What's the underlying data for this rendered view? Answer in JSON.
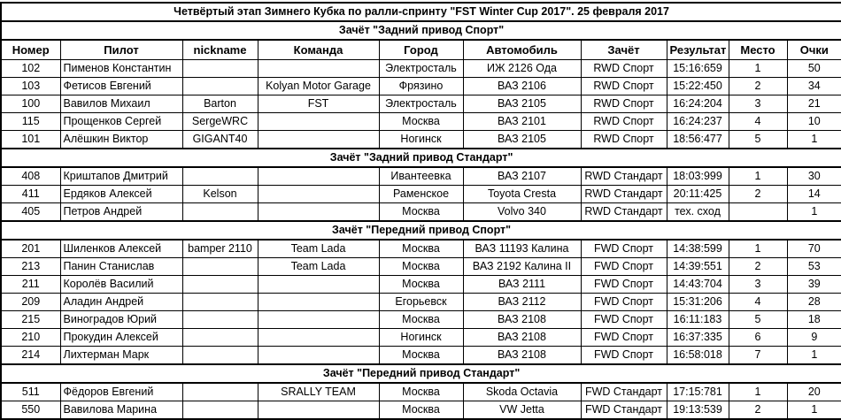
{
  "title": "Четвёртый этап Зимнего Кубка по ралли-спринту \"FST Winter Cup 2017\". 25 февраля 2017",
  "columns": [
    "Номер",
    "Пилот",
    "nickname",
    "Команда",
    "Город",
    "Автомобиль",
    "Зачёт",
    "Результат",
    "Место",
    "Очки"
  ],
  "sections": [
    {
      "title": "Зачёт \"Задний привод Спорт\"",
      "rows": [
        [
          "102",
          "Пименов Константин",
          "",
          "",
          "Электросталь",
          "ИЖ 2126 Ода",
          "RWD Спорт",
          "15:16:659",
          "1",
          "50"
        ],
        [
          "103",
          "Фетисов Евгений",
          "",
          "Kolyan Motor Garage",
          "Фрязино",
          "ВАЗ 2106",
          "RWD Спорт",
          "15:22:450",
          "2",
          "34"
        ],
        [
          "100",
          "Вавилов Михаил",
          "Barton",
          "FST",
          "Электросталь",
          "ВАЗ 2105",
          "RWD Спорт",
          "16:24:204",
          "3",
          "21"
        ],
        [
          "115",
          "Прощенков Сергей",
          "SergeWRC",
          "",
          "Москва",
          "ВАЗ 2101",
          "RWD Спорт",
          "16:24:237",
          "4",
          "10"
        ],
        [
          "101",
          "Алёшкин Виктор",
          "GIGANT40",
          "",
          "Ногинск",
          "ВАЗ 2105",
          "RWD Спорт",
          "18:56:477",
          "5",
          "1"
        ]
      ]
    },
    {
      "title": "Зачёт \"Задний привод Стандарт\"",
      "rows": [
        [
          "408",
          "Криштапов Дмитрий",
          "",
          "",
          "Ивантеевка",
          "ВАЗ 2107",
          "RWD Стандарт",
          "18:03:999",
          "1",
          "30"
        ],
        [
          "411",
          "Ердяков Алексей",
          "Kelson",
          "",
          "Раменское",
          "Toyota Cresta",
          "RWD Стандарт",
          "20:11:425",
          "2",
          "14"
        ],
        [
          "405",
          "Петров Андрей",
          "",
          "",
          "Москва",
          "Volvo 340",
          "RWD Стандарт",
          "тех. сход",
          "",
          "1"
        ]
      ]
    },
    {
      "title": "Зачёт \"Передний привод Спорт\"",
      "rows": [
        [
          "201",
          "Шиленков Алексей",
          "bamper 2110",
          "Team Lada",
          "Москва",
          "ВАЗ 11193 Калина",
          "FWD Спорт",
          "14:38:599",
          "1",
          "70"
        ],
        [
          "213",
          "Панин Станислав",
          "",
          "Team Lada",
          "Москва",
          "ВАЗ 2192 Калина II",
          "FWD Спорт",
          "14:39:551",
          "2",
          "53"
        ],
        [
          "211",
          "Королёв Василий",
          "",
          "",
          "Москва",
          "ВАЗ 2111",
          "FWD Спорт",
          "14:43:704",
          "3",
          "39"
        ],
        [
          "209",
          "Аладин Андрей",
          "",
          "",
          "Егорьевск",
          "ВАЗ 2112",
          "FWD Спорт",
          "15:31:206",
          "4",
          "28"
        ],
        [
          "215",
          "Виноградов Юрий",
          "",
          "",
          "Москва",
          "ВАЗ 2108",
          "FWD Спорт",
          "16:11:183",
          "5",
          "18"
        ],
        [
          "210",
          "Прокудин Алексей",
          "",
          "",
          "Ногинск",
          "ВАЗ 2108",
          "FWD Спорт",
          "16:37:335",
          "6",
          "9"
        ],
        [
          "214",
          "Лихтерман Марк",
          "",
          "",
          "Москва",
          "ВАЗ 2108",
          "FWD Спорт",
          "16:58:018",
          "7",
          "1"
        ]
      ]
    },
    {
      "title": "Зачёт \"Передний привод Стандарт\"",
      "rows": [
        [
          "511",
          "Фёдоров Евгений",
          "",
          "SRALLY TEAM",
          "Москва",
          "Skoda Octavia",
          "FWD Стандарт",
          "17:15:781",
          "1",
          "20"
        ],
        [
          "550",
          "Вавилова Марина",
          "",
          "",
          "Москва",
          "VW Jetta",
          "FWD Стандарт",
          "19:13:539",
          "2",
          "1"
        ]
      ]
    }
  ]
}
